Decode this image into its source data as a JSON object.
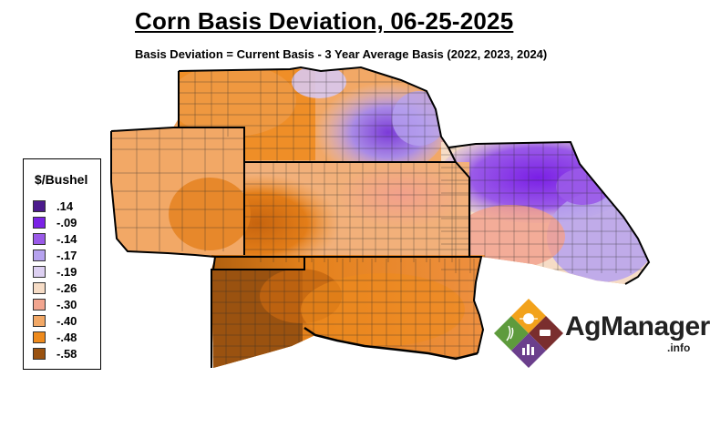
{
  "title": "Corn Basis Deviation, 06-25-2025",
  "subtitle": "Basis Deviation = Current Basis - 3 Year Average Basis (2022, 2023, 2024)",
  "legend": {
    "title": "$/Bushel",
    "items": [
      {
        "label": ".14",
        "color": "#4b1a8c"
      },
      {
        "label": "-.09",
        "color": "#7b22e6"
      },
      {
        "label": "-.14",
        "color": "#9a5ae8"
      },
      {
        "label": "-.17",
        "color": "#b6a2ef"
      },
      {
        "label": "-.19",
        "color": "#ddd0f2"
      },
      {
        "label": "-.26",
        "color": "#f6dcc6"
      },
      {
        "label": "-.30",
        "color": "#f2a58f"
      },
      {
        "label": "-.40",
        "color": "#f2a866"
      },
      {
        "label": "-.48",
        "color": "#ee8a1c"
      },
      {
        "label": "-.58",
        "color": "#9a5210"
      }
    ]
  },
  "logo": {
    "brand": "AgManager",
    "suffix": ".info",
    "colors": [
      "#f2a21b",
      "#7a2e2e",
      "#5e9b3d",
      "#6b3f8c"
    ]
  }
}
